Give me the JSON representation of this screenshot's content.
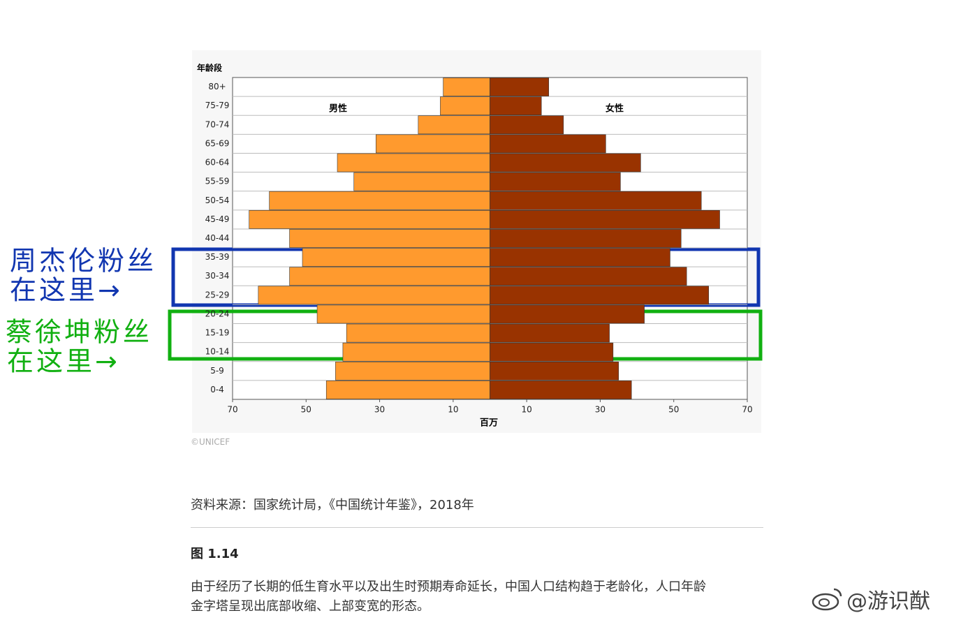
{
  "chart_data": {
    "type": "pyramid",
    "y_label": "年龄段",
    "x_label": "百万",
    "categories": [
      "80+",
      "75-79",
      "70-74",
      "65-69",
      "60-64",
      "55-59",
      "50-54",
      "45-49",
      "40-44",
      "35-39",
      "30-34",
      "25-29",
      "20-24",
      "15-19",
      "10-14",
      "5-9",
      "0-4"
    ],
    "series": [
      {
        "name": "男性",
        "color": "#ff9a2e",
        "values": [
          -12.7,
          -13.5,
          -19.5,
          -31,
          -41.5,
          -37,
          -60,
          -65.5,
          -54.5,
          -51,
          -54.5,
          -63,
          -47,
          -39,
          -40,
          -42,
          -44.5
        ]
      },
      {
        "name": "女性",
        "color": "#993300",
        "values": [
          16,
          14,
          20,
          31.5,
          41,
          35.5,
          57.5,
          62.5,
          52,
          49,
          53.5,
          59.5,
          42,
          32.5,
          33.5,
          35,
          38.5
        ]
      }
    ],
    "xlim": [
      -70,
      70
    ],
    "xticks": [
      {
        "value": -70,
        "label": "70"
      },
      {
        "value": -50,
        "label": "50"
      },
      {
        "value": -30,
        "label": "30"
      },
      {
        "value": -10,
        "label": "10"
      },
      10,
      30,
      50,
      70
    ]
  },
  "annotations": [
    {
      "lines": [
        "周杰伦粉丝",
        "在这里→"
      ]
    },
    {
      "lines": [
        "蔡徐坤粉丝",
        "在这里→"
      ]
    }
  ],
  "credit": "©UNICEF",
  "source": "资料来源：国家统计局，《中国统计年鉴》，2018年",
  "figure_label": "图 1.14",
  "caption": [
    "由于经历了长期的低生育水平以及出生时预期寿命延长，中国人口结构趋于老龄化，人口年龄",
    "金字塔呈现出底部收缩、上部变宽的形态。"
  ],
  "watermark": "@游识猷"
}
